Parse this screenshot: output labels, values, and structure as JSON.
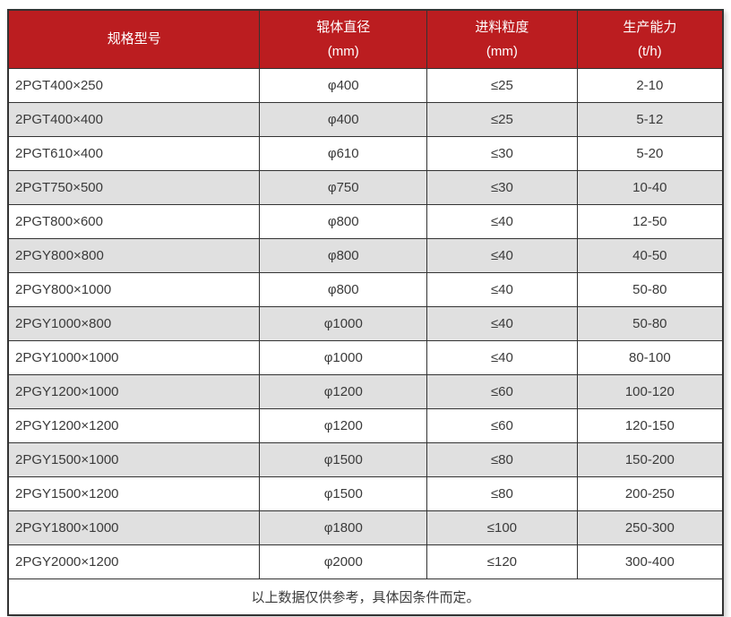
{
  "theme": {
    "header_bg": "#BB1D20",
    "header_text": "#FFFFFF",
    "stripe_bg": "#E0E0E0",
    "row_bg": "#FFFFFF",
    "border_color": "#333333",
    "text_color": "#3A3A3A"
  },
  "table": {
    "columns": [
      {
        "key": "model",
        "title": "规格型号",
        "unit": ""
      },
      {
        "key": "roller-diameter",
        "title": "辊体直径",
        "unit": "(mm)"
      },
      {
        "key": "feed-size",
        "title": "进料粒度",
        "unit": "(mm)"
      },
      {
        "key": "capacity",
        "title": "生产能力",
        "unit": "(t/h)"
      }
    ],
    "rows": [
      [
        "2PGT400×250",
        "φ400",
        "≤25",
        "2-10"
      ],
      [
        "2PGT400×400",
        "φ400",
        "≤25",
        "5-12"
      ],
      [
        "2PGT610×400",
        "φ610",
        "≤30",
        "5-20"
      ],
      [
        "2PGT750×500",
        "φ750",
        "≤30",
        "10-40"
      ],
      [
        "2PGT800×600",
        "φ800",
        "≤40",
        "12-50"
      ],
      [
        "2PGY800×800",
        "φ800",
        "≤40",
        "40-50"
      ],
      [
        "2PGY800×1000",
        "φ800",
        "≤40",
        "50-80"
      ],
      [
        "2PGY1000×800",
        "φ1000",
        "≤40",
        "50-80"
      ],
      [
        "2PGY1000×1000",
        "φ1000",
        "≤40",
        "80-100"
      ],
      [
        "2PGY1200×1000",
        "φ1200",
        "≤60",
        "100-120"
      ],
      [
        "2PGY1200×1200",
        "φ1200",
        "≤60",
        "120-150"
      ],
      [
        "2PGY1500×1000",
        "φ1500",
        "≤80",
        "150-200"
      ],
      [
        "2PGY1500×1200",
        "φ1500",
        "≤80",
        "200-250"
      ],
      [
        "2PGY1800×1000",
        "φ1800",
        "≤100",
        "250-300"
      ],
      [
        "2PGY2000×1200",
        "φ2000",
        "≤120",
        "300-400"
      ]
    ],
    "footer_note": "以上数据仅供参考，具体因条件而定。"
  },
  "chart_data": {
    "type": "table",
    "title": "",
    "columns": [
      "规格型号",
      "辊体直径 (mm)",
      "进料粒度 (mm)",
      "生产能力 (t/h)"
    ],
    "rows": [
      [
        "2PGT400×250",
        "φ400",
        "≤25",
        "2-10"
      ],
      [
        "2PGT400×400",
        "φ400",
        "≤25",
        "5-12"
      ],
      [
        "2PGT610×400",
        "φ610",
        "≤30",
        "5-20"
      ],
      [
        "2PGT750×500",
        "φ750",
        "≤30",
        "10-40"
      ],
      [
        "2PGT800×600",
        "φ800",
        "≤40",
        "12-50"
      ],
      [
        "2PGY800×800",
        "φ800",
        "≤40",
        "40-50"
      ],
      [
        "2PGY800×1000",
        "φ800",
        "≤40",
        "50-80"
      ],
      [
        "2PGY1000×800",
        "φ1000",
        "≤40",
        "50-80"
      ],
      [
        "2PGY1000×1000",
        "φ1000",
        "≤40",
        "80-100"
      ],
      [
        "2PGY1200×1000",
        "φ1200",
        "≤60",
        "100-120"
      ],
      [
        "2PGY1200×1200",
        "φ1200",
        "≤60",
        "120-150"
      ],
      [
        "2PGY1500×1000",
        "φ1500",
        "≤80",
        "150-200"
      ],
      [
        "2PGY1500×1200",
        "φ1500",
        "≤80",
        "200-250"
      ],
      [
        "2PGY1800×1000",
        "φ1800",
        "≤100",
        "250-300"
      ],
      [
        "2PGY2000×1200",
        "φ2000",
        "≤120",
        "300-400"
      ]
    ],
    "footnote": "以上数据仅供参考，具体因条件而定。"
  }
}
